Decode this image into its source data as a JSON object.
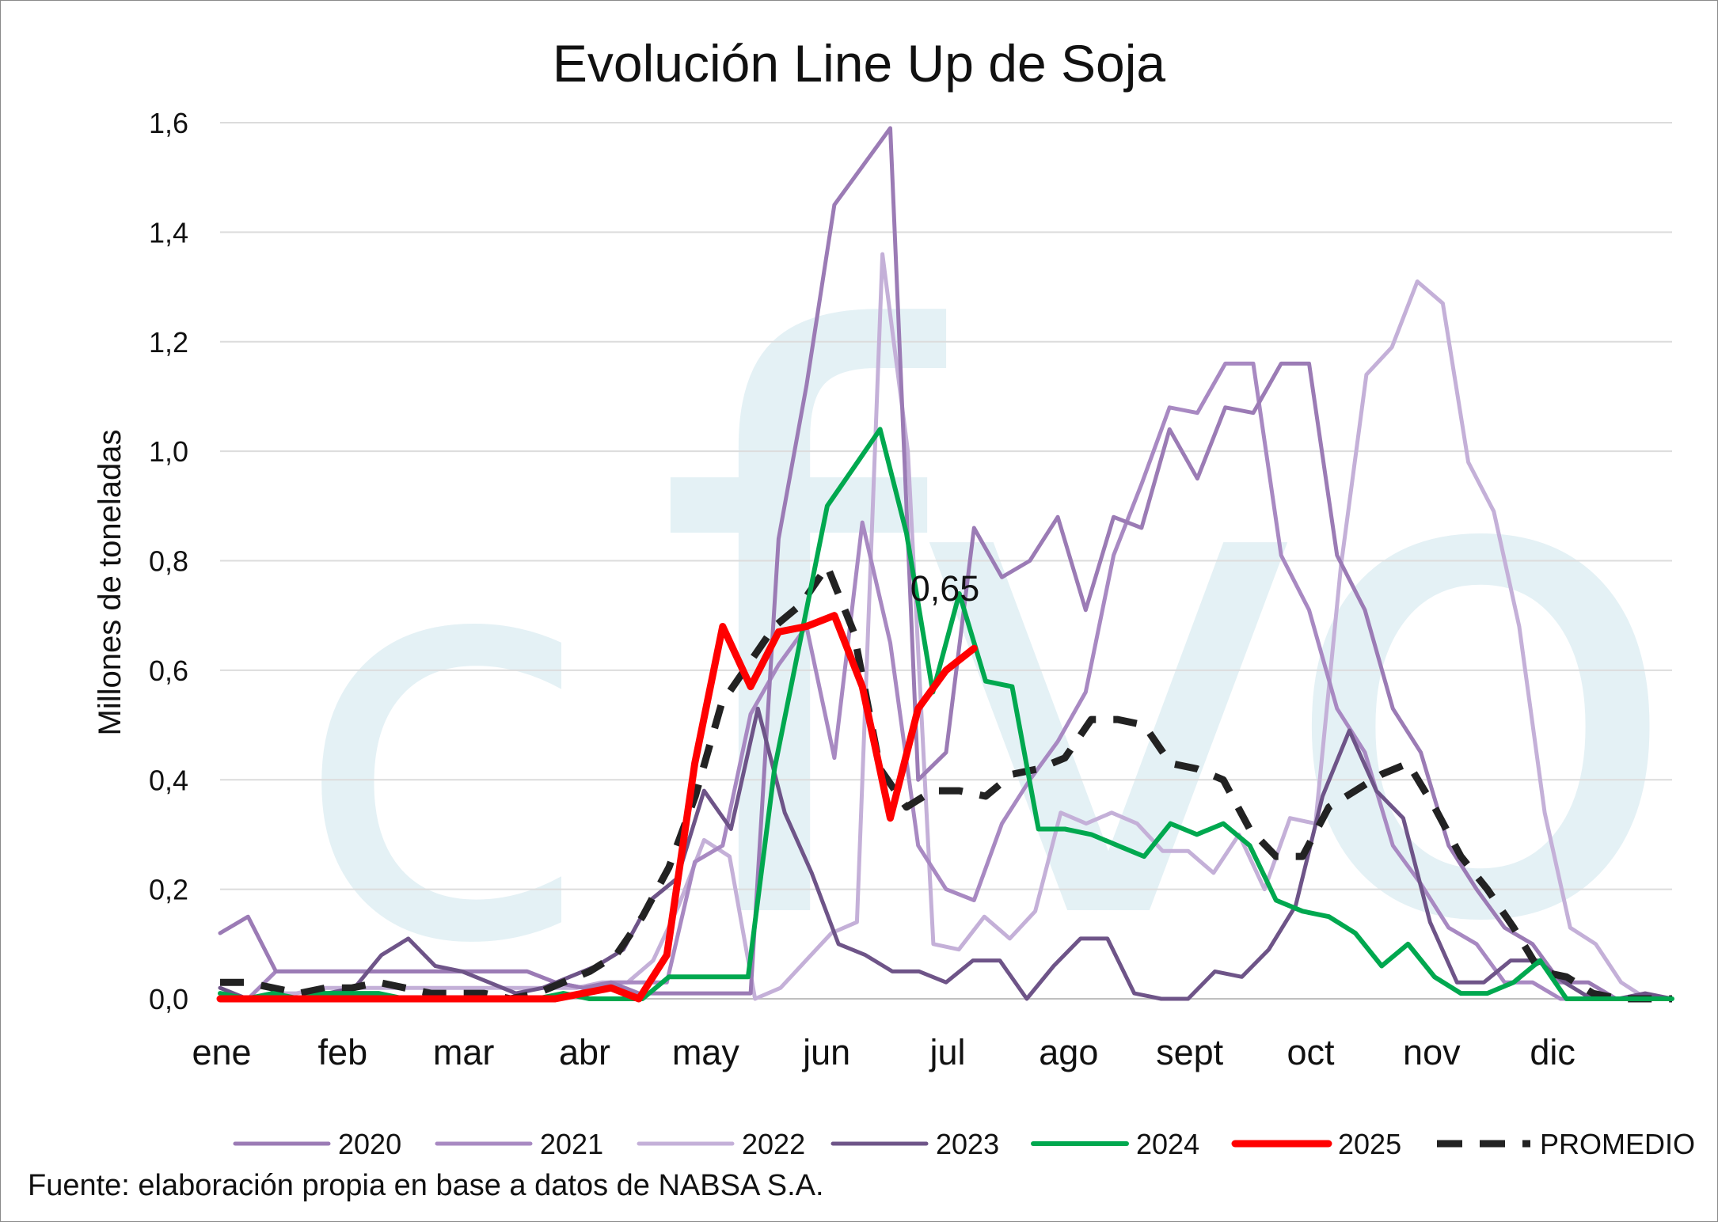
{
  "chart_data": {
    "type": "line",
    "title": "Evolución Line Up de Soja",
    "ylabel": "Millones de toneladas",
    "xlabel": "",
    "ylim": [
      0,
      1.6
    ],
    "y_ticks": [
      "0,0",
      "0,2",
      "0,4",
      "0,6",
      "0,8",
      "1,0",
      "1,2",
      "1,4",
      "1,6"
    ],
    "y_tick_values": [
      0,
      0.2,
      0.4,
      0.6,
      0.8,
      1.0,
      1.2,
      1.4,
      1.6
    ],
    "months": [
      "ene",
      "feb",
      "mar",
      "abr",
      "may",
      "jun",
      "jul",
      "ago",
      "sept",
      "oct",
      "nov",
      "dic"
    ],
    "x_unit": "week of year",
    "grid": true,
    "legend_position": "bottom",
    "annotation": {
      "text": "0,65",
      "series": "2025",
      "week": 25
    },
    "series": [
      {
        "name": "2020",
        "color": "#9b7bb5",
        "width": 5,
        "dashed": false,
        "values": [
          0.12,
          0.15,
          0.05,
          0.05,
          0.05,
          0.05,
          0.05,
          0.05,
          0.05,
          0.05,
          0.05,
          0.05,
          0.03,
          0.02,
          0.03,
          0.01,
          0.01,
          0.01,
          0.01,
          0.01,
          0.84,
          1.12,
          1.45,
          1.52,
          1.59,
          0.4,
          0.45,
          0.86,
          0.77,
          0.8,
          0.88,
          0.71,
          0.88,
          0.86,
          1.04,
          0.95,
          1.08,
          1.07,
          1.16,
          1.16,
          0.81,
          0.71,
          0.53,
          0.45,
          0.28,
          0.2,
          0.13,
          0.1,
          0.03,
          0.03,
          0.0,
          0.0,
          0.0
        ]
      },
      {
        "name": "2021",
        "color": "#a889c2",
        "width": 5,
        "dashed": false,
        "values": [
          0.0,
          0.0,
          0.05,
          0.05,
          0.05,
          0.05,
          0.05,
          0.05,
          0.05,
          0.05,
          0.05,
          0.05,
          0.03,
          0.02,
          0.03,
          0.03,
          0.03,
          0.25,
          0.28,
          0.52,
          0.61,
          0.68,
          0.44,
          0.87,
          0.65,
          0.28,
          0.2,
          0.18,
          0.32,
          0.4,
          0.47,
          0.56,
          0.81,
          0.94,
          1.08,
          1.07,
          1.16,
          1.16,
          0.81,
          0.71,
          0.53,
          0.45,
          0.28,
          0.21,
          0.13,
          0.1,
          0.03,
          0.03,
          0.0,
          0.0,
          0.0,
          0.0,
          0.0
        ]
      },
      {
        "name": "2022",
        "color": "#c4b0d8",
        "width": 5,
        "dashed": false,
        "values": [
          0.0,
          0.0,
          0.01,
          0.01,
          0.02,
          0.02,
          0.02,
          0.02,
          0.02,
          0.02,
          0.02,
          0.02,
          0.02,
          0.02,
          0.02,
          0.03,
          0.03,
          0.07,
          0.17,
          0.29,
          0.26,
          0.0,
          0.02,
          0.07,
          0.12,
          0.14,
          1.36,
          1.0,
          0.1,
          0.09,
          0.15,
          0.11,
          0.16,
          0.34,
          0.32,
          0.34,
          0.32,
          0.27,
          0.27,
          0.23,
          0.3,
          0.2,
          0.33,
          0.32,
          0.79,
          1.14,
          1.19,
          1.31,
          1.27,
          0.98,
          0.89,
          0.68,
          0.34,
          0.13,
          0.1,
          0.03,
          0.0,
          0.0
        ]
      },
      {
        "name": "2023",
        "color": "#6e5488",
        "width": 5,
        "dashed": false,
        "values": [
          0.02,
          0.0,
          0.0,
          0.0,
          0.01,
          0.02,
          0.08,
          0.11,
          0.06,
          0.05,
          0.03,
          0.01,
          0.02,
          0.04,
          0.06,
          0.09,
          0.18,
          0.22,
          0.38,
          0.31,
          0.53,
          0.34,
          0.23,
          0.1,
          0.08,
          0.05,
          0.05,
          0.03,
          0.07,
          0.07,
          0.0,
          0.06,
          0.11,
          0.11,
          0.01,
          0.0,
          0.0,
          0.05,
          0.04,
          0.09,
          0.17,
          0.37,
          0.49,
          0.38,
          0.33,
          0.14,
          0.03,
          0.03,
          0.07,
          0.07,
          0.03,
          0.0,
          0.0,
          0.01,
          0.0
        ]
      },
      {
        "name": "2024",
        "color": "#00a84f",
        "width": 6,
        "dashed": false,
        "values": [
          0.01,
          0.0,
          0.01,
          0.0,
          0.01,
          0.01,
          0.01,
          0.0,
          0.0,
          0.0,
          0.0,
          0.0,
          0.0,
          0.01,
          0.0,
          0.0,
          0.0,
          0.04,
          0.04,
          0.04,
          0.04,
          0.42,
          0.66,
          0.9,
          0.97,
          1.04,
          0.85,
          0.56,
          0.74,
          0.58,
          0.57,
          0.31,
          0.31,
          0.3,
          0.28,
          0.26,
          0.32,
          0.3,
          0.32,
          0.28,
          0.18,
          0.16,
          0.15,
          0.12,
          0.06,
          0.1,
          0.04,
          0.01,
          0.01,
          0.03,
          0.07,
          0.0,
          0.0,
          0.0,
          0.0,
          0.0
        ]
      },
      {
        "name": "2025",
        "color": "#ff0000",
        "width": 9,
        "dashed": false,
        "values": [
          0.0,
          0.0,
          0.0,
          0.0,
          0.0,
          0.0,
          0.0,
          0.0,
          0.0,
          0.0,
          0.0,
          0.0,
          0.0,
          0.01,
          0.02,
          0.0,
          0.08,
          0.43,
          0.68,
          0.57,
          0.67,
          0.68,
          0.7,
          0.57,
          0.33,
          0.53,
          0.6,
          0.64
        ]
      },
      {
        "name": "PROMEDIO",
        "color": "#222222",
        "width": 9,
        "dashed": true,
        "values": [
          0.03,
          0.03,
          0.02,
          0.01,
          0.02,
          0.02,
          0.03,
          0.02,
          0.01,
          0.01,
          0.01,
          0.0,
          0.01,
          0.03,
          0.05,
          0.08,
          0.15,
          0.24,
          0.37,
          0.54,
          0.61,
          0.68,
          0.72,
          0.79,
          0.67,
          0.42,
          0.35,
          0.38,
          0.38,
          0.37,
          0.41,
          0.42,
          0.44,
          0.51,
          0.51,
          0.5,
          0.43,
          0.42,
          0.4,
          0.31,
          0.26,
          0.26,
          0.35,
          0.38,
          0.41,
          0.43,
          0.35,
          0.26,
          0.2,
          0.13,
          0.05,
          0.04,
          0.01,
          0.0,
          0.0,
          0.0
        ]
      }
    ]
  },
  "watermark_text": "cfvo",
  "source_note": "Fuente: elaboración propia en base a datos de NABSA S.A."
}
